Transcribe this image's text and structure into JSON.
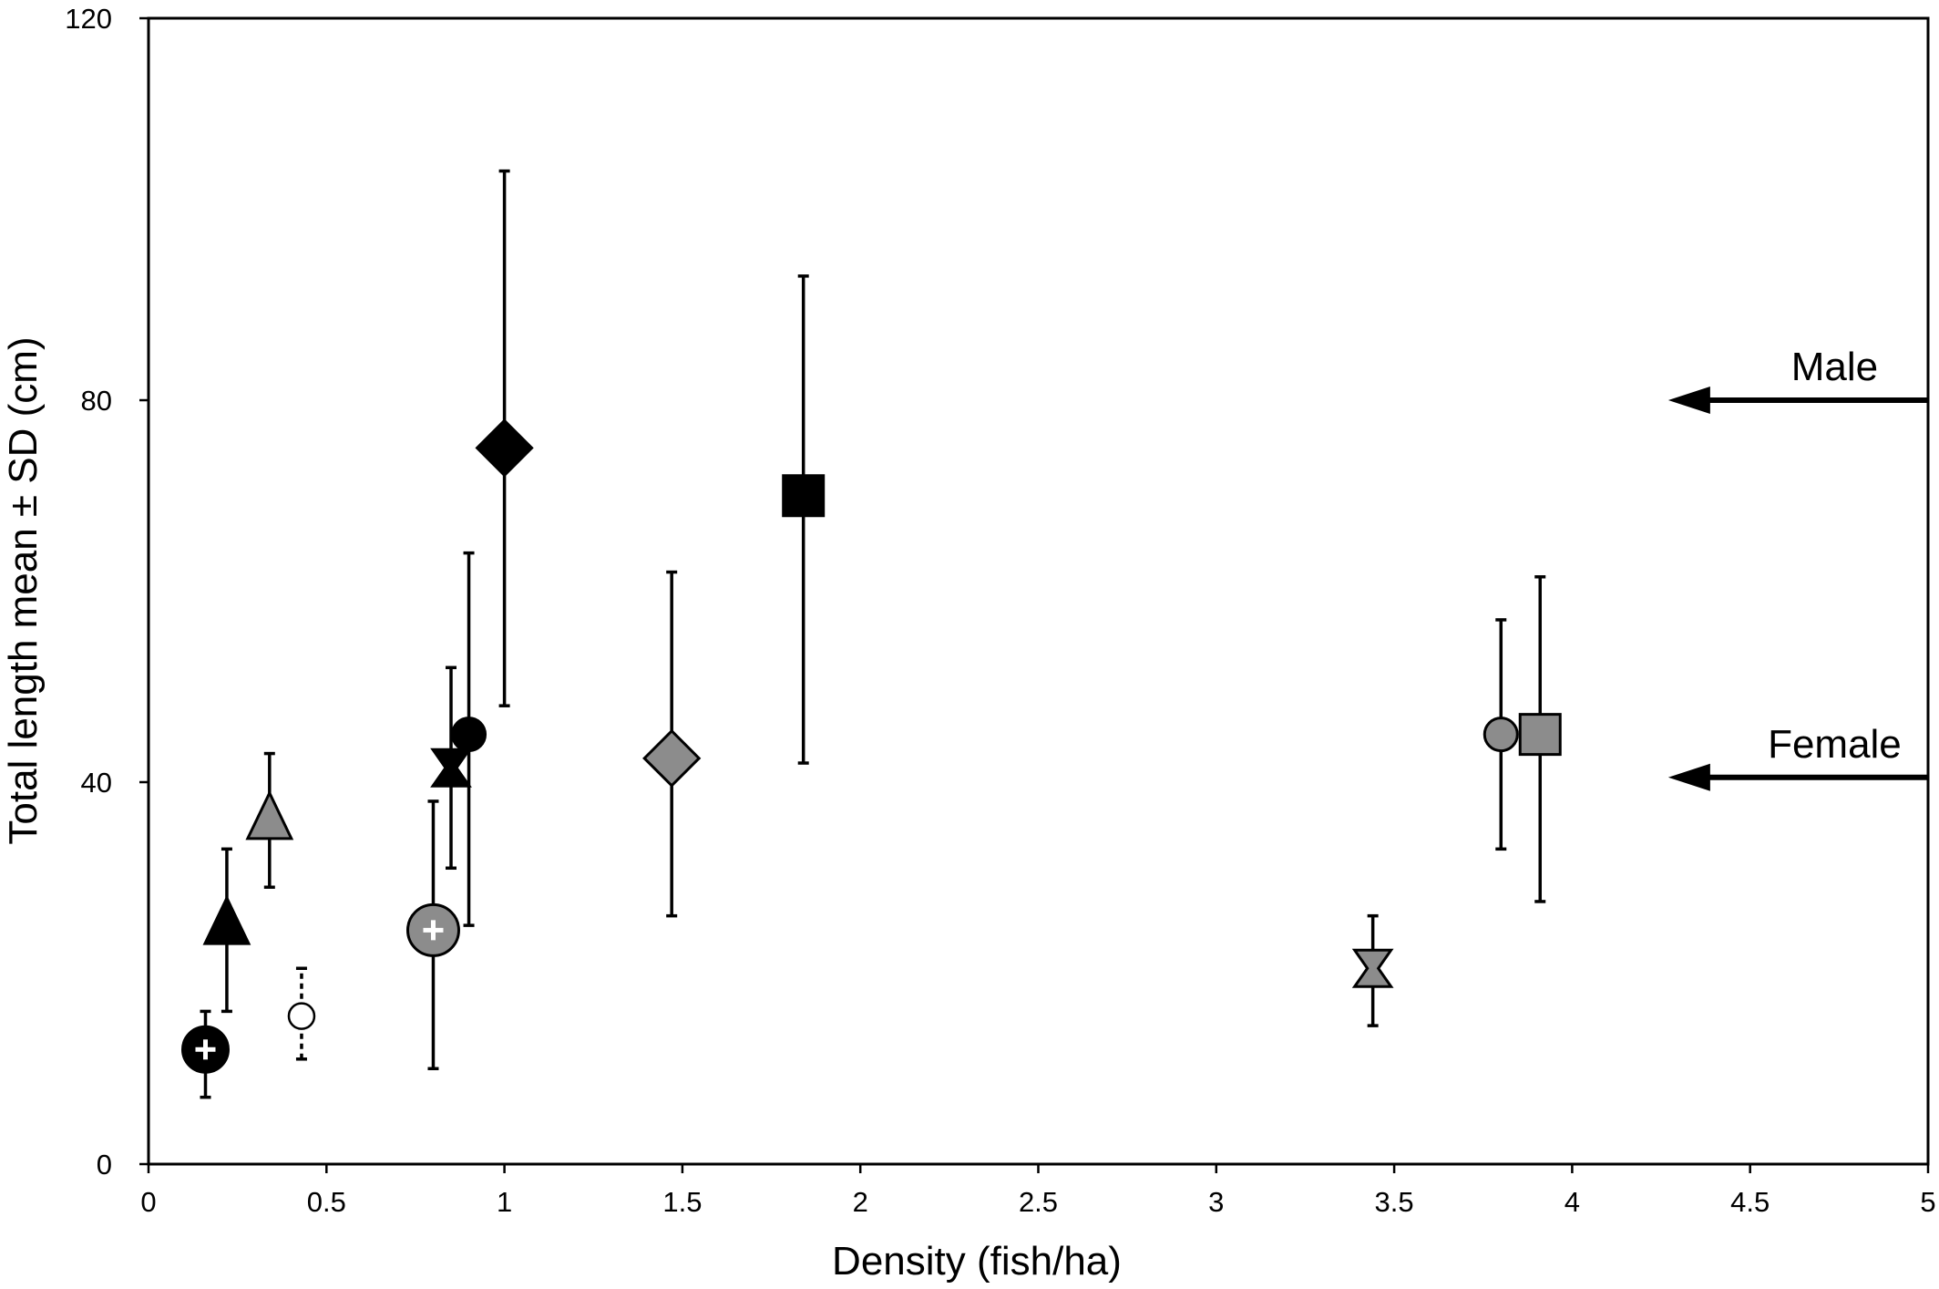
{
  "chart_data": {
    "type": "scatter",
    "title": "",
    "xlabel": "Density (fish/ha)",
    "ylabel": "Total length mean ± SD (cm)",
    "xlim": [
      0,
      5
    ],
    "ylim": [
      0,
      120
    ],
    "x_ticks": [
      "0",
      "0.5",
      "1",
      "1.5",
      "2",
      "2.5",
      "3",
      "3.5",
      "4",
      "4.5",
      "5"
    ],
    "y_ticks": [
      "0",
      "40",
      "80",
      "120"
    ],
    "grid": false,
    "legend": "none",
    "points": [
      {
        "x": 0.16,
        "y": 12,
        "y_low": 7,
        "y_high": 16,
        "marker": "circle-plus",
        "fill": "#000000"
      },
      {
        "x": 0.22,
        "y": 25,
        "y_low": 16,
        "y_high": 33,
        "marker": "triangle",
        "fill": "#000000"
      },
      {
        "x": 0.34,
        "y": 36,
        "y_low": 29,
        "y_high": 43,
        "marker": "triangle",
        "fill": "#8c8c8c"
      },
      {
        "x": 0.43,
        "y": 15.5,
        "y_low": 11,
        "y_high": 20.5,
        "marker": "circle",
        "fill": "#ffffff",
        "dashed": true
      },
      {
        "x": 0.8,
        "y": 24.5,
        "y_low": 10,
        "y_high": 38,
        "marker": "circle-plus",
        "fill": "#8c8c8c"
      },
      {
        "x": 0.85,
        "y": 41.5,
        "y_low": 31,
        "y_high": 52,
        "marker": "x",
        "fill": "#000000"
      },
      {
        "x": 0.9,
        "y": 45,
        "y_low": 25,
        "y_high": 64,
        "marker": "circle",
        "fill": "#000000"
      },
      {
        "x": 1.0,
        "y": 75,
        "y_low": 48,
        "y_high": 104,
        "marker": "diamond",
        "fill": "#000000"
      },
      {
        "x": 1.47,
        "y": 42.5,
        "y_low": 26,
        "y_high": 62,
        "marker": "diamond",
        "fill": "#8c8c8c"
      },
      {
        "x": 1.84,
        "y": 70,
        "y_low": 42,
        "y_high": 93,
        "marker": "square",
        "fill": "#000000"
      },
      {
        "x": 3.44,
        "y": 20.5,
        "y_low": 14.5,
        "y_high": 26,
        "marker": "x",
        "fill": "#8c8c8c"
      },
      {
        "x": 3.8,
        "y": 45,
        "y_low": 33,
        "y_high": 57,
        "marker": "circle",
        "fill": "#8c8c8c"
      },
      {
        "x": 3.91,
        "y": 45,
        "y_low": 27.5,
        "y_high": 61.5,
        "marker": "square",
        "fill": "#8c8c8c"
      }
    ],
    "annotations": [
      {
        "text": "Male",
        "y": 80,
        "arrow_from_x": 5,
        "arrow_to_x": 4.27
      },
      {
        "text": "Female",
        "y": 40.5,
        "arrow_from_x": 5,
        "arrow_to_x": 4.27
      }
    ]
  }
}
